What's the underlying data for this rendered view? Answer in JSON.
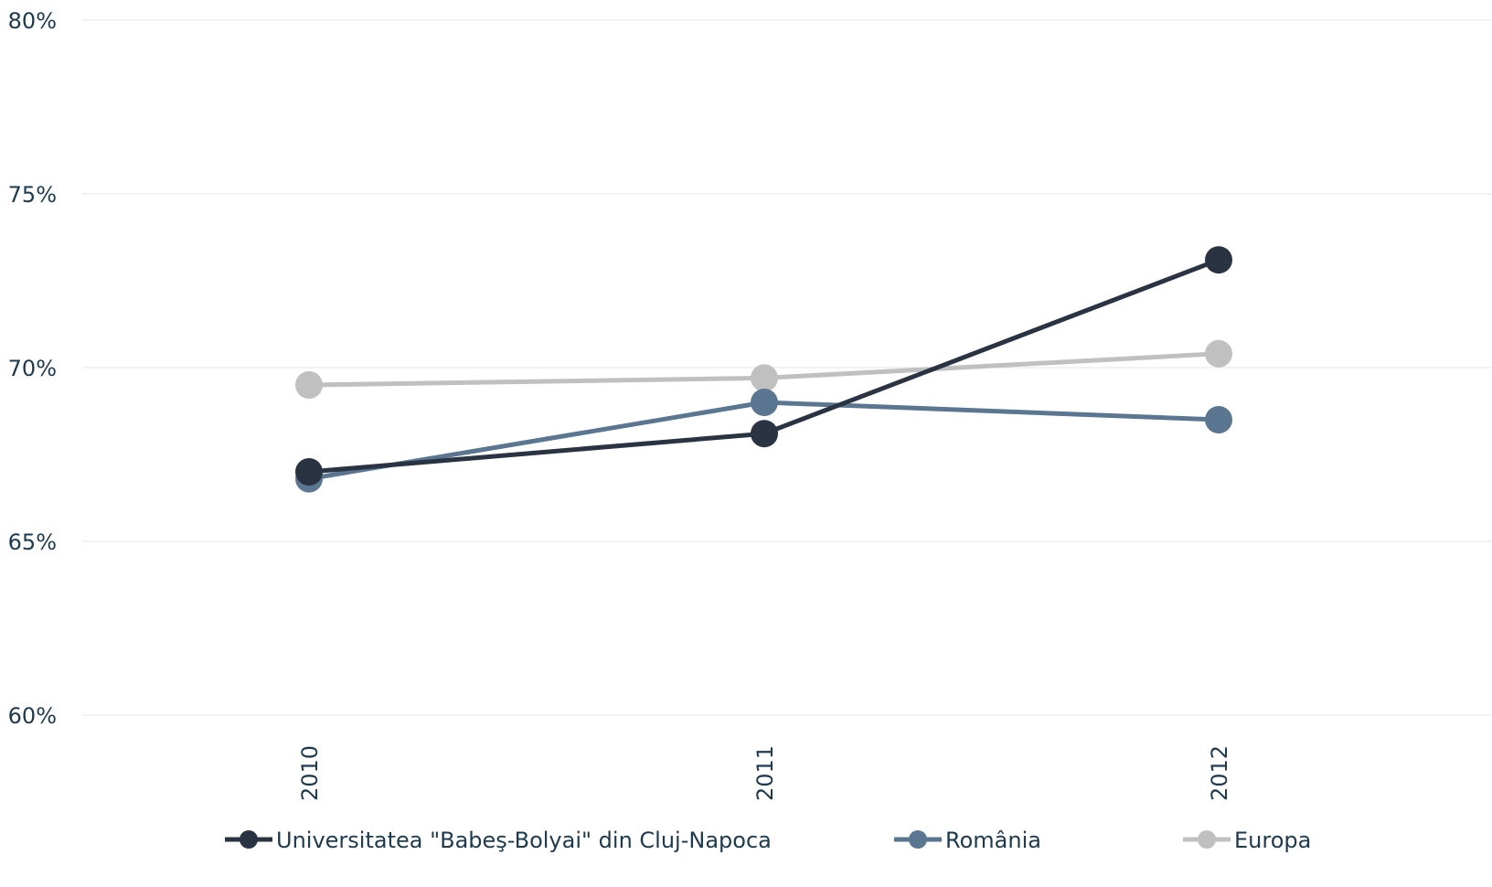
{
  "chart_data": {
    "type": "line",
    "categories": [
      "2010",
      "2011",
      "2012"
    ],
    "series": [
      {
        "name": "Universitatea \"Babeş-Bolyai\" din Cluj-Napoca",
        "values": [
          67.0,
          68.1,
          73.1
        ],
        "color": "#2a3342"
      },
      {
        "name": "România",
        "values": [
          66.8,
          69.0,
          68.5
        ],
        "color": "#5a7690"
      },
      {
        "name": "Europa",
        "values": [
          69.5,
          69.7,
          70.4
        ],
        "color": "#c0c0c0"
      }
    ],
    "y_ticks": [
      60,
      65,
      70,
      75,
      80
    ],
    "y_tick_labels": [
      "60%",
      "65%",
      "70%",
      "75%",
      "80%"
    ],
    "ylim": [
      60,
      80
    ],
    "grid": true,
    "legend": "bottom"
  }
}
